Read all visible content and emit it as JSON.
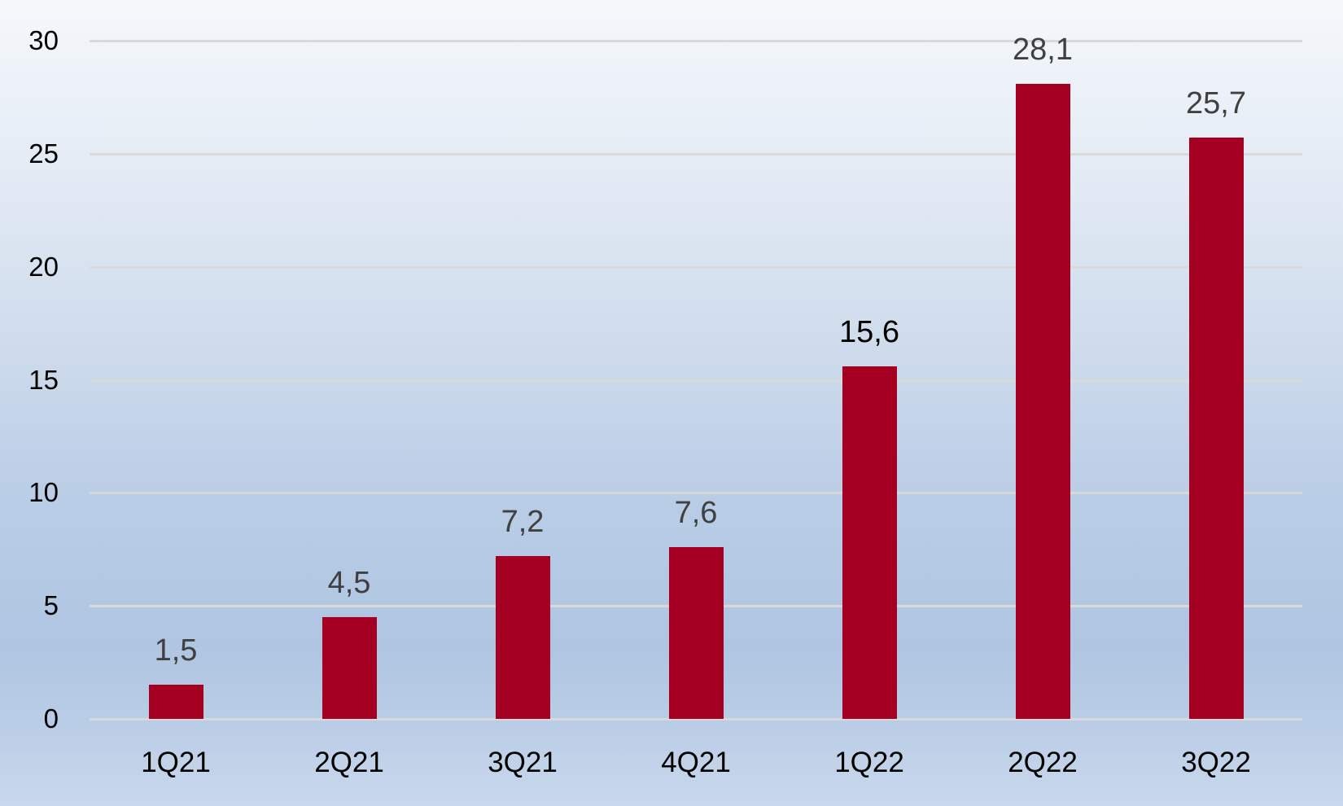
{
  "chart_data": {
    "type": "bar",
    "title": "",
    "xlabel": "",
    "ylabel": "",
    "categories": [
      "1Q21",
      "2Q21",
      "3Q21",
      "4Q21",
      "1Q22",
      "2Q22",
      "3Q22"
    ],
    "values": [
      1.5,
      4.5,
      7.2,
      7.6,
      15.6,
      28.1,
      25.7
    ],
    "data_labels": [
      "1,5",
      "4,5",
      "7,2",
      "7,6",
      "15,6",
      "28,1",
      "25,7"
    ],
    "ylim": [
      0,
      30
    ],
    "yticks": [
      "0",
      "5",
      "10",
      "15",
      "20",
      "25",
      "30"
    ],
    "grid": true,
    "legend": null,
    "bar_color": "#a50021",
    "gridline_color": "#d9d9d9"
  }
}
